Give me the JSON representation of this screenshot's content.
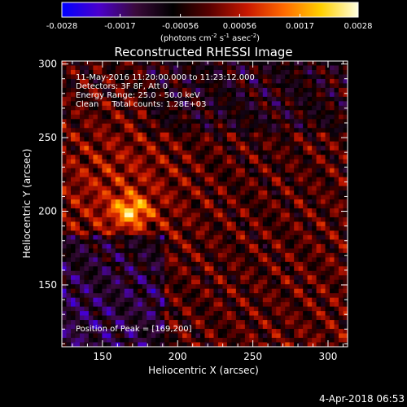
{
  "chart_data": {
    "type": "heatmap",
    "title": "Reconstructed RHESSI Image",
    "xlabel": "Heliocentric X (arcsec)",
    "ylabel": "Heliocentric Y (arcsec)",
    "xlim": [
      123,
      313
    ],
    "ylim": [
      108,
      302
    ],
    "x_ticks": [
      150,
      200,
      250,
      300
    ],
    "y_ticks": [
      150,
      200,
      250,
      300
    ],
    "colorbar": {
      "min": -0.0028,
      "max": 0.0028,
      "ticks": [
        "-0.0028",
        "-0.0017",
        "-0.00056",
        "0.00056",
        "0.0017",
        "0.0028"
      ],
      "label_main": "(photons cm",
      "label_sup1": "-2",
      "label_mid1": " s",
      "label_sup2": "-1",
      "label_mid2": " asec",
      "label_sup3": "-2",
      "label_end": ")",
      "colormap": [
        "#0000ff",
        "#4b00cc",
        "#3a0a3a",
        "#000000",
        "#5a0000",
        "#c81800",
        "#ff6a00",
        "#ffd000",
        "#ffffe0"
      ]
    },
    "annotations": [
      "11-May-2016 11:20:00.000 to 11:23:12.000",
      "Detectors: 3F 8F, Att 0",
      "Energy Range: 25.0 - 50.0 keV",
      "Clean     Total counts: 1.28E+03"
    ],
    "peak_label": "Position of Peak = [169,200]",
    "peak": {
      "x": 169,
      "y": 200
    }
  },
  "footer": {
    "date": "4-Apr-2018 06:53"
  }
}
